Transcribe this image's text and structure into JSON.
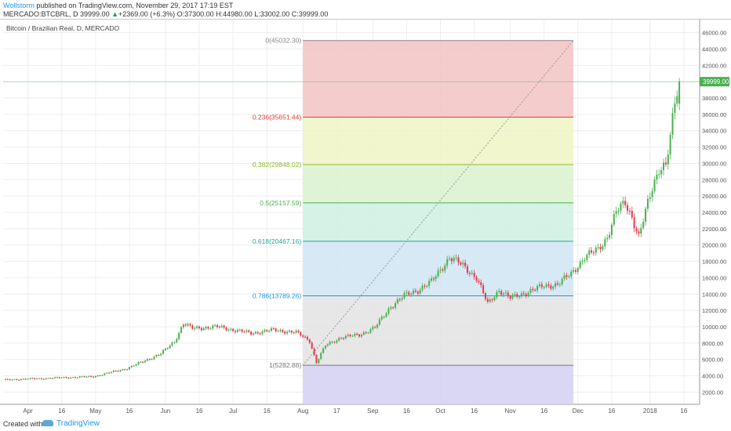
{
  "header": {
    "author": "Wollstorm",
    "published": " published on TradingView.com, November 29, 2017 17:19 EST",
    "symbol": "MERCADO:BTCBRL, D",
    "last": "39999.00",
    "change_arrow": "▲",
    "change": "+2369.00 (+6.3%)",
    "open": "O:37300.00",
    "high": "H:44980.00",
    "low": "L:33002.00",
    "close": "C:39999.00"
  },
  "footer": {
    "created_with": "Created with",
    "brand": "TradingView"
  },
  "chart_data": {
    "type": "candlestick",
    "title": "Bitcoin / Brazilian Real, D, MERCADO",
    "price_axis": {
      "ticks": [
        2000,
        4000,
        6000,
        8000,
        10000,
        12000,
        14000,
        16000,
        18000,
        20000,
        22000,
        24000,
        26000,
        28000,
        30000,
        32000,
        34000,
        36000,
        38000,
        40000,
        42000,
        44000,
        46000
      ],
      "range": [
        500,
        47500
      ],
      "current_price_label": "39999.00"
    },
    "time_axis": {
      "labels": [
        "Apr",
        "16",
        "May",
        "16",
        "Jun",
        "16",
        "Jul",
        "16",
        "Aug",
        "17",
        "Sep",
        "16",
        "Oct",
        "16",
        "Nov",
        "16",
        "Dec",
        "16",
        "2018",
        "16"
      ],
      "label_days": [
        -259,
        -244,
        -229,
        -214,
        -198,
        -183,
        -168,
        -153,
        -137,
        -122,
        -106,
        -91,
        -76,
        -61,
        -45,
        -30,
        -15,
        0,
        17,
        32
      ]
    },
    "fibonacci": {
      "levels": [
        {
          "ratio": "0",
          "price": 45032.3,
          "label": "0(45032.30)",
          "color": "#888888",
          "fill": "#f3c3c3"
        },
        {
          "ratio": "0.236",
          "price": 35651.44,
          "label": "0.236(35651.44)",
          "color": "#e53935",
          "fill": "#eef5c4"
        },
        {
          "ratio": "0.382",
          "price": 29848.02,
          "label": "0.382(29848.02)",
          "color": "#8dbb2a",
          "fill": "#d9f2cc"
        },
        {
          "ratio": "0.5",
          "price": 25157.59,
          "label": "0.5(25157.59)",
          "color": "#4caf50",
          "fill": "#cdf0e0"
        },
        {
          "ratio": "0.618",
          "price": 20467.16,
          "label": "0.618(20467.16)",
          "color": "#26a69a",
          "fill": "#cfe5f3"
        },
        {
          "ratio": "0.786",
          "price": 13789.26,
          "label": "0.786(13789.26)",
          "color": "#2196f3",
          "fill": "#e3e3e3"
        },
        {
          "ratio": "1",
          "price": 5282.88,
          "label": "1(5282.88)",
          "color": "#777777",
          "fill": "#d4d0f3"
        }
      ],
      "start_day": -137,
      "end_day": -17
    },
    "grid": true,
    "colors": {
      "up": "#4caf50",
      "down": "#e53950"
    }
  }
}
